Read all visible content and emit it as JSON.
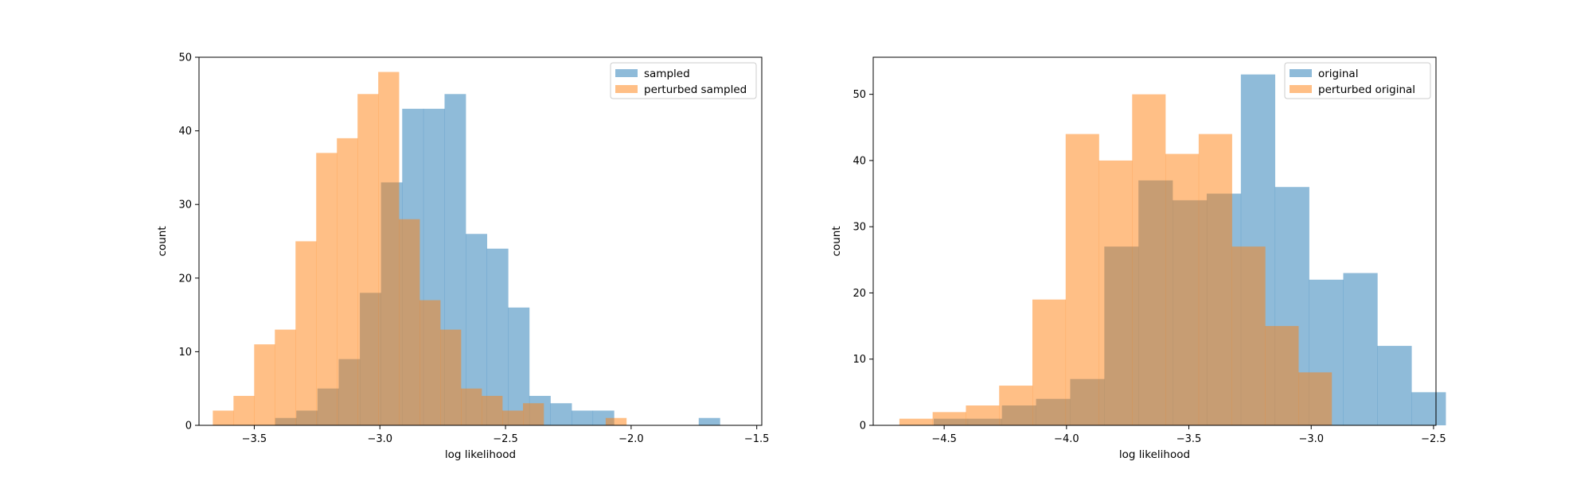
{
  "chart_data": [
    {
      "type": "histogram",
      "xlabel": "log likelihood",
      "ylabel": "count",
      "xlim": [
        -3.72,
        -1.48
      ],
      "ylim": [
        0,
        50
      ],
      "xticks": [
        -3.5,
        -3.0,
        -2.5,
        -2.0,
        -1.5
      ],
      "xtick_labels": [
        "−3.5",
        "−3.0",
        "−2.5",
        "−2.0",
        "−1.5"
      ],
      "yticks": [
        0,
        10,
        20,
        30,
        40,
        50
      ],
      "ytick_labels": [
        "0",
        "10",
        "20",
        "30",
        "40",
        "50"
      ],
      "legend_position": "top-right",
      "series": [
        {
          "name": "sampled",
          "color": "#1f77b4",
          "alpha": 0.5,
          "bin_start": -3.417,
          "bin_width": 0.0843,
          "counts": [
            1,
            2,
            5,
            9,
            18,
            33,
            43,
            43,
            45,
            26,
            24,
            16,
            4,
            3,
            2,
            2,
            0,
            0,
            0,
            0,
            1
          ]
        },
        {
          "name": "perturbed sampled",
          "color": "#ff7f0e",
          "alpha": 0.5,
          "bin_start": -3.665,
          "bin_width": 0.0823,
          "counts": [
            2,
            4,
            11,
            13,
            25,
            37,
            39,
            45,
            48,
            28,
            17,
            13,
            5,
            4,
            2,
            3,
            0,
            0,
            0,
            1
          ]
        }
      ]
    },
    {
      "type": "histogram",
      "xlabel": "log likelihood",
      "ylabel": "count",
      "xlim": [
        -4.79,
        -2.49
      ],
      "ylim": [
        0,
        55.6
      ],
      "xticks": [
        -4.5,
        -4.0,
        -3.5,
        -3.0,
        -2.5
      ],
      "xtick_labels": [
        "−4.5",
        "−4.0",
        "−3.5",
        "−3.0",
        "−2.5"
      ],
      "yticks": [
        0,
        10,
        20,
        30,
        40,
        50
      ],
      "ytick_labels": [
        "0",
        "10",
        "20",
        "30",
        "40",
        "50"
      ],
      "legend_position": "top-right",
      "series": [
        {
          "name": "original",
          "color": "#1f77b4",
          "alpha": 0.5,
          "bin_start": -4.543,
          "bin_width": 0.1395,
          "counts": [
            1,
            1,
            3,
            4,
            7,
            27,
            37,
            34,
            35,
            53,
            36,
            22,
            23,
            12,
            5
          ]
        },
        {
          "name": "perturbed original",
          "color": "#ff7f0e",
          "alpha": 0.5,
          "bin_start": -4.683,
          "bin_width": 0.1359,
          "counts": [
            1,
            2,
            3,
            6,
            19,
            44,
            40,
            50,
            41,
            44,
            27,
            15,
            8
          ]
        }
      ]
    }
  ]
}
